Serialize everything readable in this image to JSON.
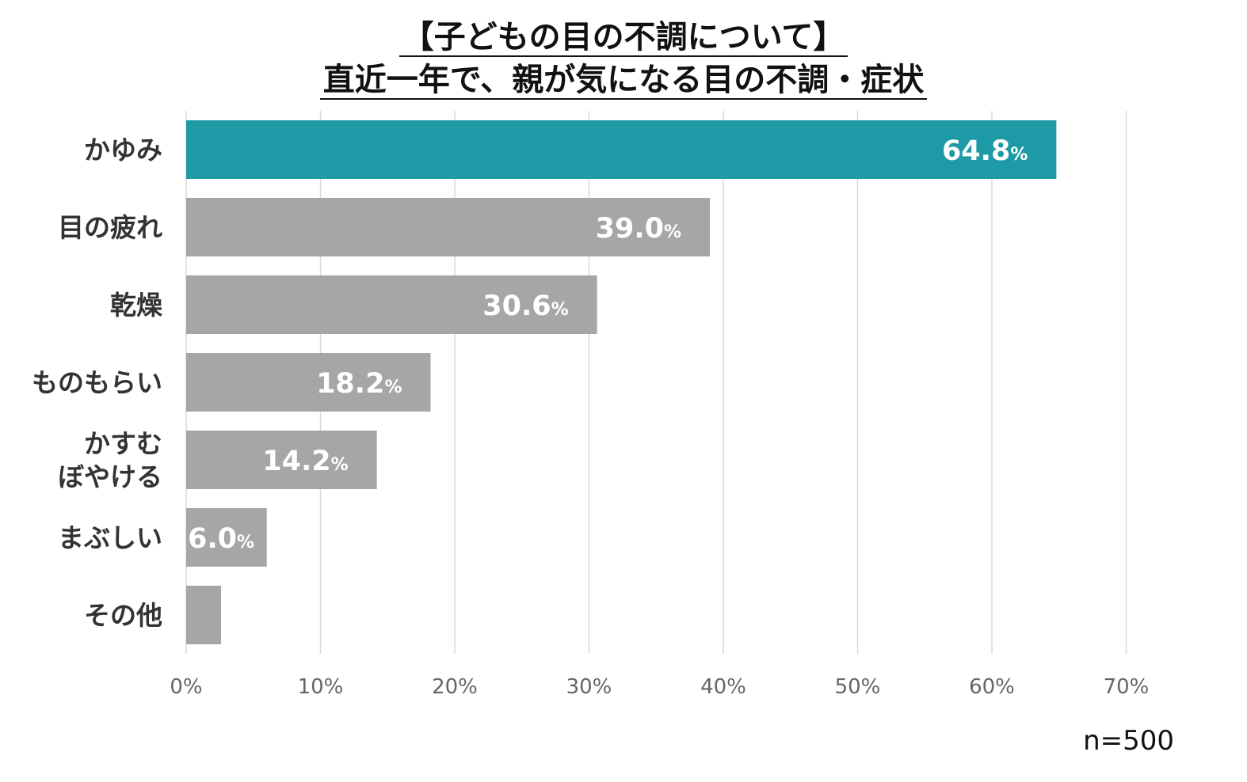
{
  "chart_data": {
    "type": "bar",
    "orientation": "horizontal",
    "title_line1": "【子どもの目の不調について】",
    "title_line2": "直近一年で、親が気になる目の不調・症状",
    "categories": [
      "かゆみ",
      "目の疲れ",
      "乾燥",
      "ものもらい",
      "かすむ\nぼやける",
      "まぶしい",
      "その他"
    ],
    "values": [
      64.8,
      39.0,
      30.6,
      18.2,
      14.2,
      6.0,
      2.6
    ],
    "value_labels": [
      "64.8",
      "39.0",
      "30.6",
      "18.2",
      "14.2",
      "6.0",
      ""
    ],
    "percent_sign": "%",
    "highlight_index": 0,
    "xlim": [
      0,
      70
    ],
    "xticks": [
      0,
      10,
      20,
      30,
      40,
      50,
      60,
      70
    ],
    "xtick_labels": [
      "0%",
      "10%",
      "20%",
      "30%",
      "40%",
      "50%",
      "60%",
      "70%"
    ],
    "colors": {
      "highlight": "#1d9aa5",
      "default": "#a6a6a6",
      "grid": "#d9d9d9"
    },
    "note": "n=500"
  }
}
